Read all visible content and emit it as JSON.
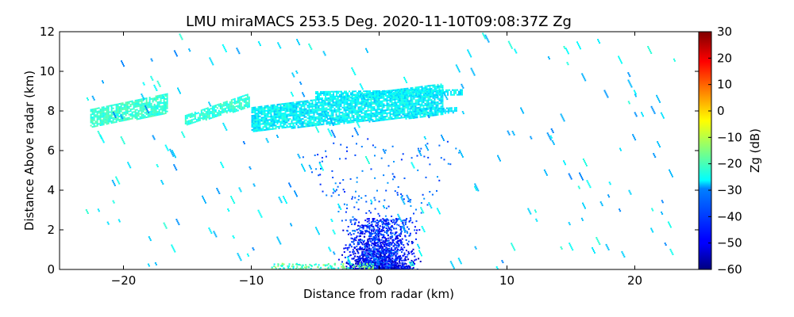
{
  "chart_data": {
    "type": "heatmap",
    "title": "LMU miraMACS 253.5 Deg. 2020-11-10T09:08:37Z  Zg",
    "xlabel": "Distance from radar (km)",
    "ylabel": "Distance Above radar  (km)",
    "xlim": [
      -25,
      25
    ],
    "ylim": [
      0,
      12
    ],
    "xticks": [
      "−20",
      "−10",
      "0",
      "10",
      "20"
    ],
    "xtick_values": [
      -20,
      -10,
      0,
      10,
      20
    ],
    "yticks": [
      "0",
      "2",
      "4",
      "6",
      "8",
      "10",
      "12"
    ],
    "ytick_values": [
      0,
      2,
      4,
      6,
      8,
      10,
      12
    ],
    "colorbar": {
      "label": "Zg (dB)",
      "range": [
        -60,
        30
      ],
      "ticks": [
        "30",
        "20",
        "10",
        "0",
        "−10",
        "−20",
        "−30",
        "−40",
        "−50",
        "−60"
      ],
      "tick_values": [
        30,
        20,
        10,
        0,
        -10,
        -20,
        -30,
        -40,
        -50,
        -60
      ],
      "colormap": "jet"
    },
    "features": [
      {
        "description_value": "cloud layer",
        "x_range_km": [
          -22.5,
          -16.5
        ],
        "y_range_km": [
          7.0,
          8.8
        ],
        "zg_db": -22
      },
      {
        "description_value": "cloud layer",
        "x_range_km": [
          -15.5,
          -10.0
        ],
        "y_range_km": [
          7.2,
          8.9
        ],
        "zg_db": -24
      },
      {
        "description_value": "main cloud layer",
        "x_range_km": [
          -10.0,
          6.5
        ],
        "y_range_km": [
          7.0,
          9.3
        ],
        "zg_db": -27
      },
      {
        "description_value": "near-surface clutter",
        "x_range_km": [
          -3.0,
          3.0
        ],
        "y_range_km": [
          0.0,
          3.5
        ],
        "zg_db": -52
      }
    ],
    "grid": false
  }
}
